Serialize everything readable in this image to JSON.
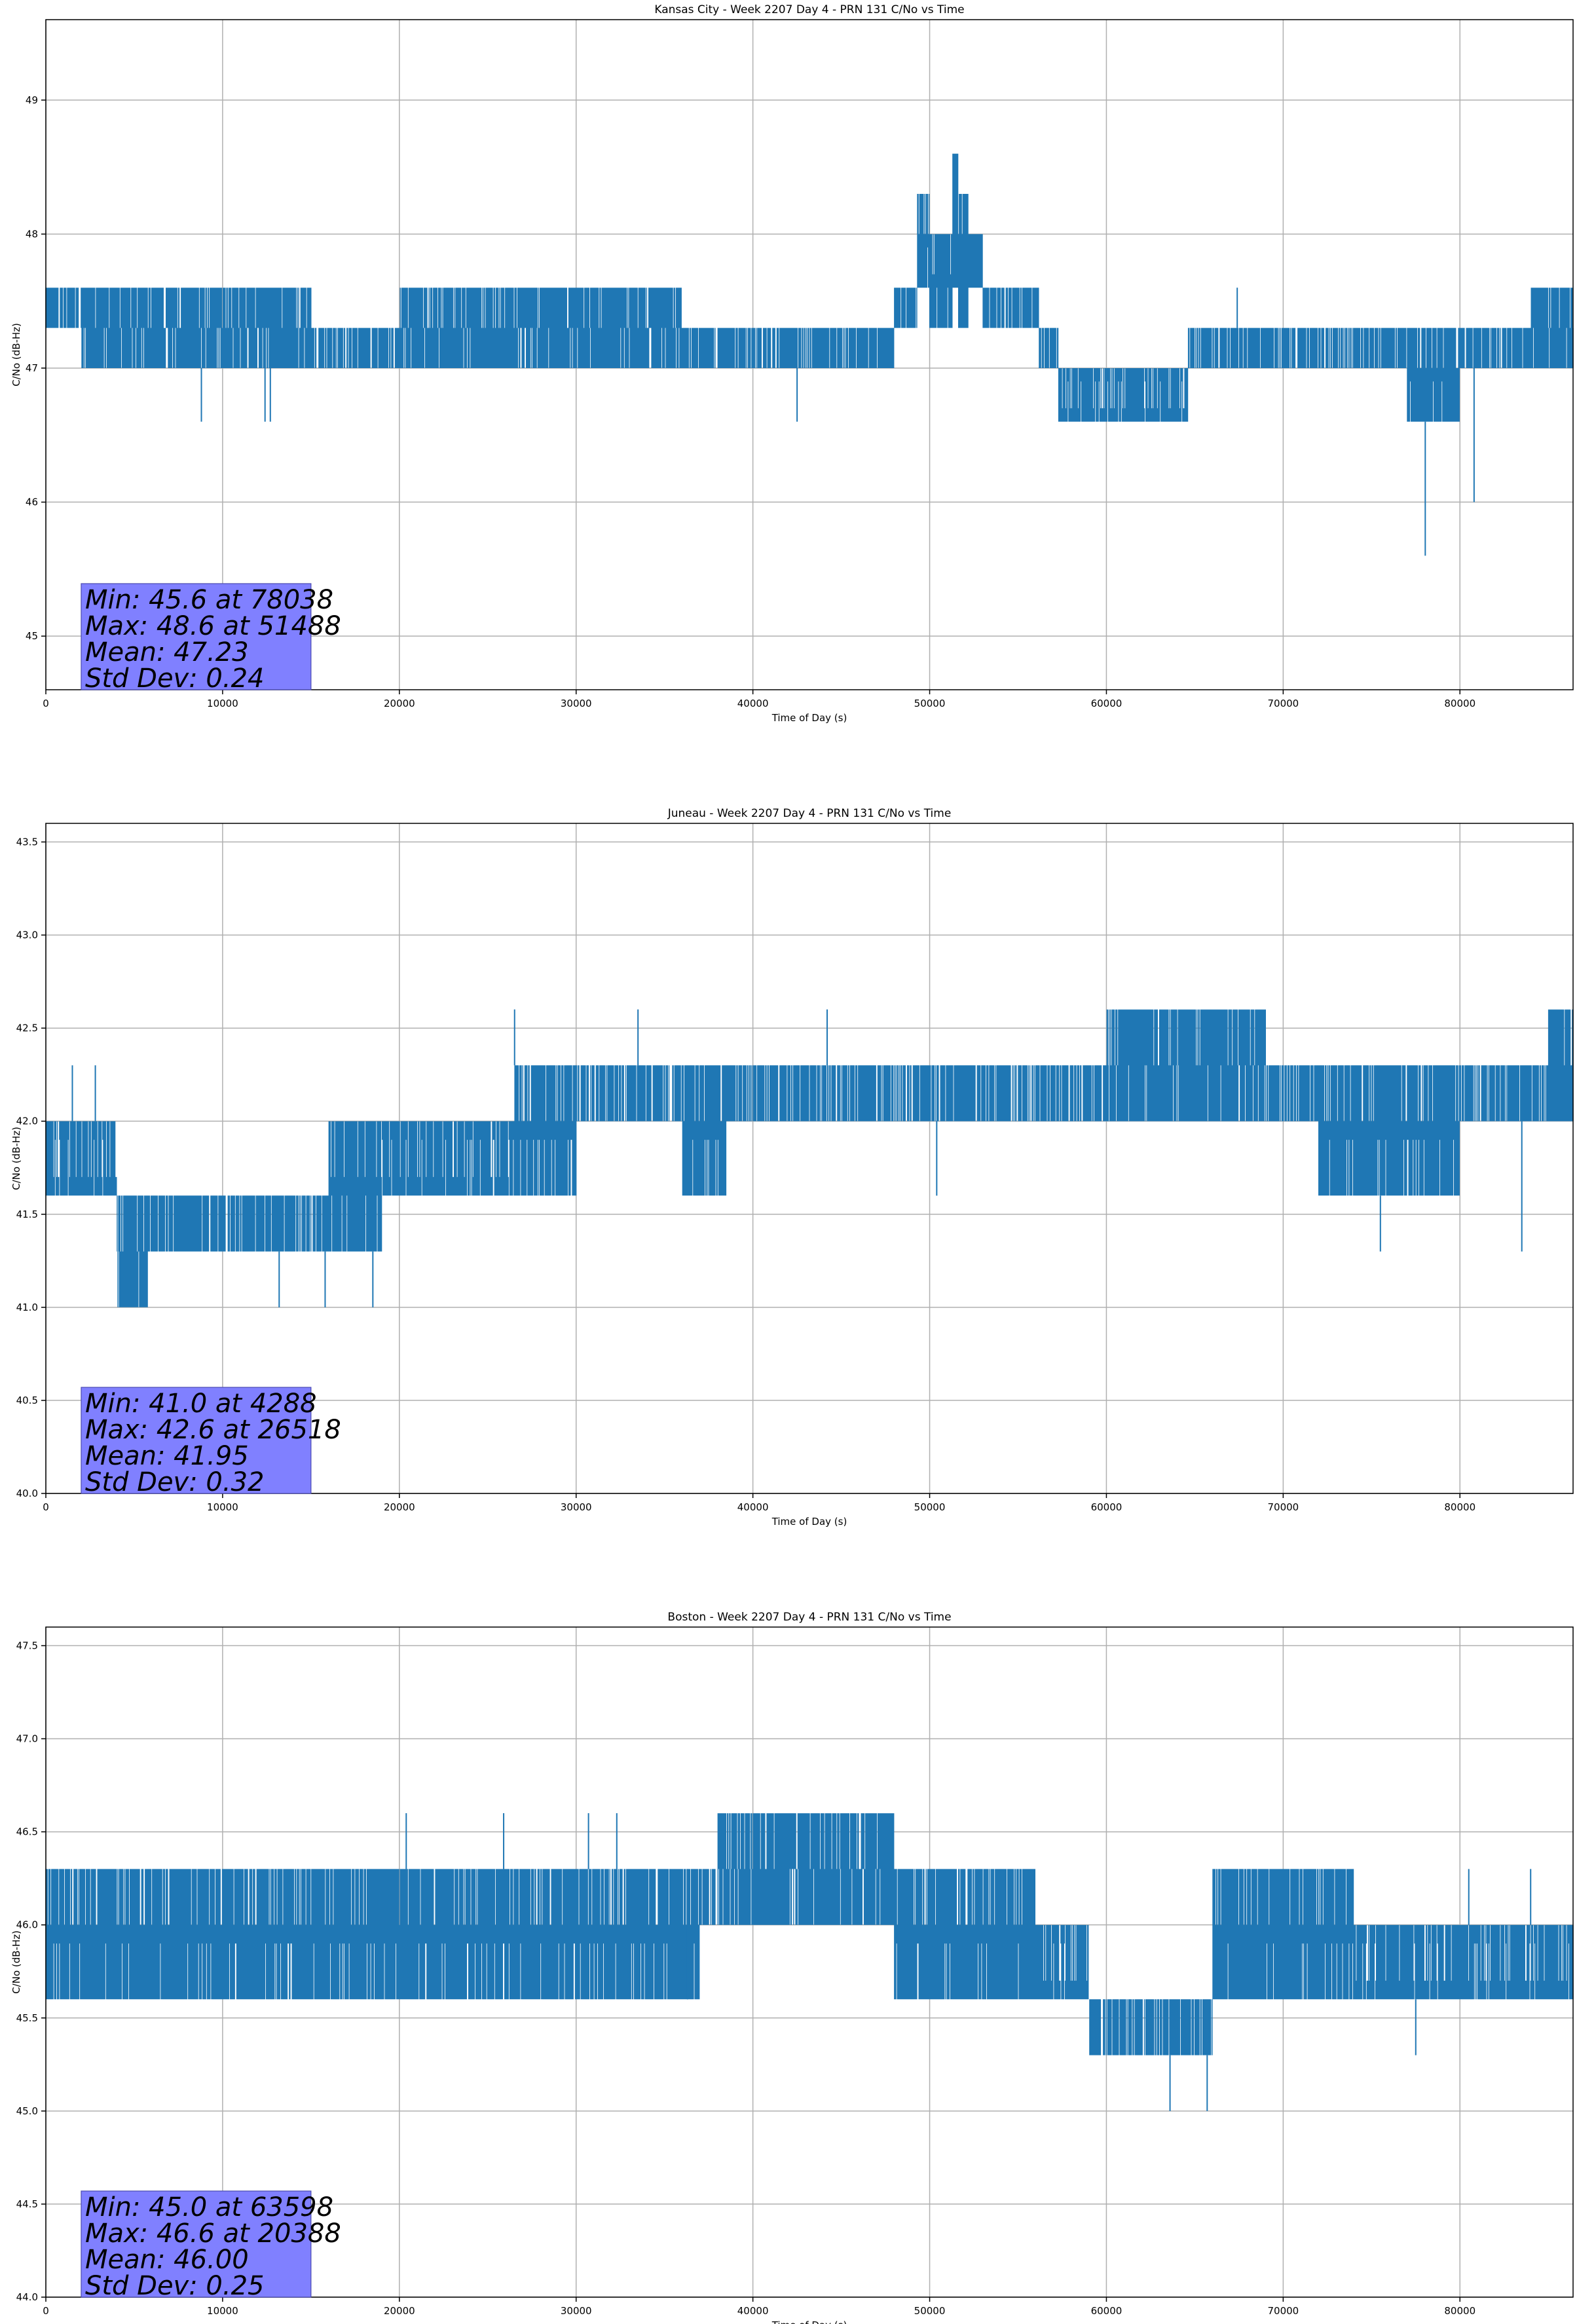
{
  "colors": {
    "series": "#1f77b4",
    "stats_box": "#8080ff",
    "grid": "#b0b0b0"
  },
  "chart_data": [
    {
      "type": "line",
      "title": "Kansas City - Week 2207 Day 4 - PRN 131 C/No vs Time",
      "xlabel": "Time of Day (s)",
      "ylabel": "C/No (dB-Hz)",
      "xlim": [
        0,
        86400
      ],
      "ylim": [
        44.6,
        49.6
      ],
      "xticks": [
        0,
        10000,
        20000,
        30000,
        40000,
        50000,
        60000,
        70000,
        80000
      ],
      "yticks": [
        45,
        46,
        47,
        48,
        49
      ],
      "grid": true,
      "quantum": 0.3,
      "stats": [
        "Min: 45.6 at 78038",
        "Max: 48.6 at 51488",
        "Mean: 47.23",
        "Std Dev: 0.24"
      ],
      "segments": [
        {
          "x0": 0,
          "x1": 2000,
          "lo": 47.3,
          "hi": 47.6
        },
        {
          "x0": 2000,
          "x1": 15000,
          "lo": 47.0,
          "hi": 47.6
        },
        {
          "x0": 15000,
          "x1": 20000,
          "lo": 47.0,
          "hi": 47.3
        },
        {
          "x0": 20000,
          "x1": 36000,
          "lo": 47.0,
          "hi": 47.6
        },
        {
          "x0": 36000,
          "x1": 48000,
          "lo": 47.0,
          "hi": 47.3
        },
        {
          "x0": 48000,
          "x1": 49300,
          "lo": 47.3,
          "hi": 47.6
        },
        {
          "x0": 49300,
          "x1": 50000,
          "lo": 47.6,
          "hi": 48.3
        },
        {
          "x0": 50000,
          "x1": 51300,
          "lo": 47.3,
          "hi": 48.0
        },
        {
          "x0": 51300,
          "x1": 51600,
          "lo": 47.6,
          "hi": 48.6
        },
        {
          "x0": 51600,
          "x1": 52200,
          "lo": 47.3,
          "hi": 48.3
        },
        {
          "x0": 52200,
          "x1": 53000,
          "lo": 47.6,
          "hi": 48.0
        },
        {
          "x0": 53000,
          "x1": 56200,
          "lo": 47.3,
          "hi": 47.6
        },
        {
          "x0": 56200,
          "x1": 57300,
          "lo": 47.0,
          "hi": 47.3
        },
        {
          "x0": 57300,
          "x1": 64600,
          "lo": 46.6,
          "hi": 47.0
        },
        {
          "x0": 64600,
          "x1": 77000,
          "lo": 47.0,
          "hi": 47.3
        },
        {
          "x0": 77000,
          "x1": 80000,
          "lo": 46.6,
          "hi": 47.3
        },
        {
          "x0": 80000,
          "x1": 84000,
          "lo": 47.0,
          "hi": 47.3
        },
        {
          "x0": 84000,
          "x1": 86400,
          "lo": 47.0,
          "hi": 47.6
        }
      ],
      "spikes": [
        {
          "x": 8800,
          "y": 46.6
        },
        {
          "x": 12400,
          "y": 46.6
        },
        {
          "x": 12700,
          "y": 46.6
        },
        {
          "x": 42500,
          "y": 46.6
        },
        {
          "x": 67400,
          "y": 47.6
        },
        {
          "x": 78038,
          "y": 45.6
        },
        {
          "x": 80800,
          "y": 46.0
        }
      ]
    },
    {
      "type": "line",
      "title": "Juneau - Week 2207 Day 4 - PRN 131 C/No vs Time",
      "xlabel": "Time of Day (s)",
      "ylabel": "C/No (dB-Hz)",
      "xlim": [
        0,
        86400
      ],
      "ylim": [
        40.0,
        43.6
      ],
      "xticks": [
        0,
        10000,
        20000,
        30000,
        40000,
        50000,
        60000,
        70000,
        80000
      ],
      "yticks": [
        40.0,
        40.5,
        41.0,
        41.5,
        42.0,
        42.5,
        43.0,
        43.5
      ],
      "grid": true,
      "quantum": 0.3,
      "stats": [
        "Min: 41.0 at 4288",
        "Max: 42.6 at 26518",
        "Mean: 41.95",
        "Std Dev: 0.32"
      ],
      "segments": [
        {
          "x0": 0,
          "x1": 4000,
          "lo": 41.6,
          "hi": 42.0
        },
        {
          "x0": 4000,
          "x1": 5800,
          "lo": 41.0,
          "hi": 41.6
        },
        {
          "x0": 5800,
          "x1": 16000,
          "lo": 41.3,
          "hi": 41.6
        },
        {
          "x0": 16000,
          "x1": 19000,
          "lo": 41.3,
          "hi": 42.0
        },
        {
          "x0": 19000,
          "x1": 26500,
          "lo": 41.6,
          "hi": 42.0
        },
        {
          "x0": 26500,
          "x1": 30000,
          "lo": 41.6,
          "hi": 42.3
        },
        {
          "x0": 30000,
          "x1": 36000,
          "lo": 42.0,
          "hi": 42.3
        },
        {
          "x0": 36000,
          "x1": 38500,
          "lo": 41.6,
          "hi": 42.3
        },
        {
          "x0": 38500,
          "x1": 60000,
          "lo": 42.0,
          "hi": 42.3
        },
        {
          "x0": 60000,
          "x1": 69000,
          "lo": 42.0,
          "hi": 42.6
        },
        {
          "x0": 69000,
          "x1": 72000,
          "lo": 42.0,
          "hi": 42.3
        },
        {
          "x0": 72000,
          "x1": 80000,
          "lo": 41.6,
          "hi": 42.3
        },
        {
          "x0": 80000,
          "x1": 85000,
          "lo": 42.0,
          "hi": 42.3
        },
        {
          "x0": 85000,
          "x1": 86400,
          "lo": 42.0,
          "hi": 42.6
        }
      ],
      "spikes": [
        {
          "x": 1500,
          "y": 42.3
        },
        {
          "x": 2800,
          "y": 42.3
        },
        {
          "x": 13200,
          "y": 41.0
        },
        {
          "x": 15800,
          "y": 41.0
        },
        {
          "x": 18500,
          "y": 41.0
        },
        {
          "x": 26518,
          "y": 42.6
        },
        {
          "x": 33500,
          "y": 42.6
        },
        {
          "x": 44200,
          "y": 42.6
        },
        {
          "x": 50400,
          "y": 41.6
        },
        {
          "x": 75500,
          "y": 41.3
        },
        {
          "x": 83500,
          "y": 41.3
        }
      ]
    },
    {
      "type": "line",
      "title": "Boston - Week 2207 Day 4 - PRN 131 C/No vs Time",
      "xlabel": "Time of Day (s)",
      "ylabel": "C/No (dB-Hz)",
      "xlim": [
        0,
        86400
      ],
      "ylim": [
        44.0,
        47.6
      ],
      "xticks": [
        0,
        10000,
        20000,
        30000,
        40000,
        50000,
        60000,
        70000,
        80000
      ],
      "yticks": [
        44.0,
        44.5,
        45.0,
        45.5,
        46.0,
        46.5,
        47.0,
        47.5
      ],
      "grid": true,
      "quantum": 0.3,
      "stats": [
        "Min: 45.0 at 63598",
        "Max: 46.6 at 20388",
        "Mean: 46.00",
        "Std Dev: 0.25"
      ],
      "segments": [
        {
          "x0": 0,
          "x1": 37000,
          "lo": 45.6,
          "hi": 46.3
        },
        {
          "x0": 37000,
          "x1": 38000,
          "lo": 46.0,
          "hi": 46.3
        },
        {
          "x0": 38000,
          "x1": 48000,
          "lo": 46.0,
          "hi": 46.6
        },
        {
          "x0": 48000,
          "x1": 56000,
          "lo": 45.6,
          "hi": 46.3
        },
        {
          "x0": 56000,
          "x1": 59000,
          "lo": 45.6,
          "hi": 46.0
        },
        {
          "x0": 59000,
          "x1": 66000,
          "lo": 45.3,
          "hi": 45.6
        },
        {
          "x0": 66000,
          "x1": 74000,
          "lo": 45.6,
          "hi": 46.3
        },
        {
          "x0": 74000,
          "x1": 86400,
          "lo": 45.6,
          "hi": 46.0
        }
      ],
      "spikes": [
        {
          "x": 20388,
          "y": 46.6
        },
        {
          "x": 25900,
          "y": 46.6
        },
        {
          "x": 30700,
          "y": 46.6
        },
        {
          "x": 32300,
          "y": 46.6
        },
        {
          "x": 36300,
          "y": 45.6
        },
        {
          "x": 63598,
          "y": 45.0
        },
        {
          "x": 65700,
          "y": 45.0
        },
        {
          "x": 77500,
          "y": 45.3
        },
        {
          "x": 80500,
          "y": 46.3
        },
        {
          "x": 84000,
          "y": 46.3
        }
      ]
    }
  ]
}
